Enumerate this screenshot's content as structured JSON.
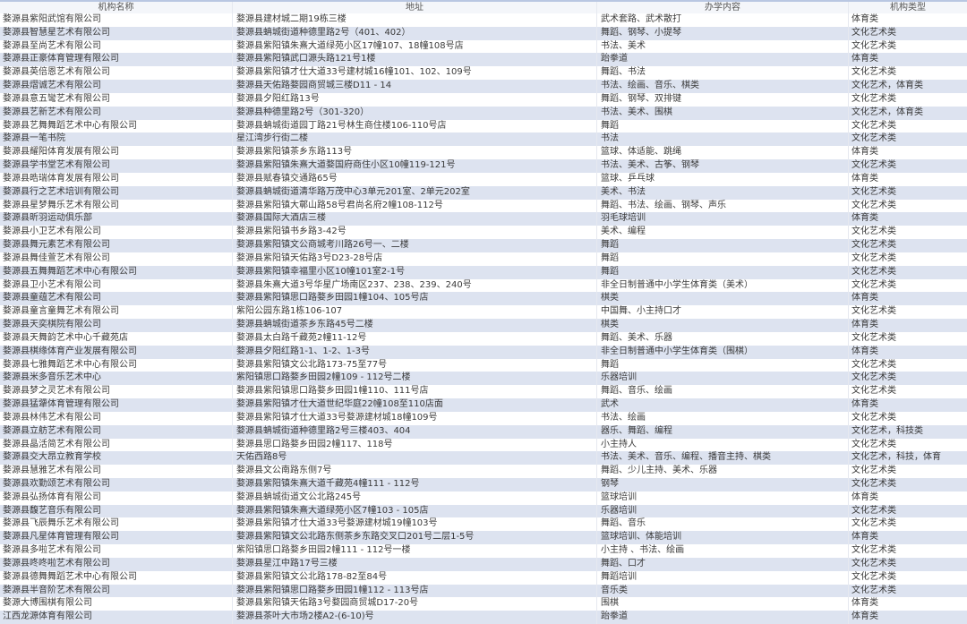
{
  "headers": [
    "机构名称",
    "地址",
    "办学内容",
    "机构类型"
  ],
  "rows": [
    [
      "婺源县紫阳武馆有限公司",
      "婺源县建材城二期19栋三楼",
      "武术套路、武术散打",
      "体育类"
    ],
    [
      "婺源县智慧星艺术有限公司",
      "婺源县蚺城街道种德里路2号（401、402）",
      "舞蹈、钢琴、小提琴",
      "文化艺术类"
    ],
    [
      "婺源县至尚艺术有限公司",
      "婺源县紫阳镇朱熹大道绿苑小区17幢107、18幢108号店",
      "书法、美术",
      "文化艺术类"
    ],
    [
      "婺源县正豪体育管理有限公司",
      "婺源县紫阳镇武口源头路121号1楼",
      "跆拳道",
      "体育类"
    ],
    [
      "婺源县英倍恩艺术有限公司",
      "婺源县紫阳镇才仕大道33号建材城16幢101、102、109号",
      "舞蹈、书法",
      "文化艺术类"
    ],
    [
      "婺源县熠诚艺术有限公司",
      "婺源县天佑路婺园商贸城三楼D11 - 14",
      "书法、绘画、音乐、棋类",
      "文化艺术，体育类"
    ],
    [
      "婺源县意五彎艺术有限公司",
      "婺源县夕阳红路13号",
      "舞蹈、钢琴、双排键",
      "文化艺术类"
    ],
    [
      "婺源县艺新艺术有限公司",
      "婺源县种德里路2号（301-320）",
      "书法、美术、围棋",
      "文化艺术，体育类"
    ],
    [
      "婺源县艺舞舞蹈艺术中心有限公司",
      "婺源县蚺城街道园丁路21号林生商住楼106-110号店",
      "舞蹈",
      "文化艺术类"
    ],
    [
      "婺源县一笔书院",
      "星江湾步行街二楼",
      "书法",
      "文化艺术类"
    ],
    [
      "婺源县耀阳体育发展有限公司",
      "婺源县紫阳镇茶乡东路113号",
      "篮球、体适能、跳绳",
      "体育类"
    ],
    [
      "婺源县学书堂艺术有限公司",
      "婺源县紫阳镇朱熹大道婺国府商住小区10幢119-121号",
      "书法、美术、古筝、钢琴",
      "文化艺术类"
    ],
    [
      "婺源县晧瑞体育发展有限公司",
      "婺源县赋春镇交通路65号",
      "篮球、乒乓球",
      "体育类"
    ],
    [
      "婺源县行之艺术培训有限公司",
      "婺源县蚺城街道清华路万茂中心3单元201室、2单元202室",
      "美术、书法",
      "文化艺术类"
    ],
    [
      "婺源县星梦舞乐艺术有限公司",
      "婺源县紫阳镇大鄣山路58号君尚名府2幢108-112号",
      "舞蹈、书法、绘画、钢琴、声乐",
      "文化艺术类"
    ],
    [
      "婺源县昕羽运动俱乐部",
      "婺源县国际大酒店三楼",
      "羽毛球培训",
      "体育类"
    ],
    [
      "婺源县小卫艺术有限公司",
      "婺源县紫阳镇书乡路3-42号",
      "美术、编程",
      "文化艺术类"
    ],
    [
      "婺源县舞元素艺术有限公司",
      "婺源县紫阳镇文公商城考川路26号一、二楼",
      "舞蹈",
      "文化艺术类"
    ],
    [
      "婺源县舞佳萱艺术有限公司",
      "婺源县紫阳镇天佑路3号D23-28号店",
      "舞蹈",
      "文化艺术类"
    ],
    [
      "婺源县五舞舞蹈艺术中心有限公司",
      "婺源县紫阳镇幸福里小区10幢101室2-1号",
      "舞蹈",
      "文化艺术类"
    ],
    [
      "婺源县卫小艺术有限公司",
      "婺源县朱熹大道3号华星广场南区237、238、239、240号",
      "非全日制普通中小学生体育类（美术）",
      "文化艺术类"
    ],
    [
      "婺源县童蕴艺术有限公司",
      "婺源县紫阳镇思口路婺乡田园1幢104、105号店",
      "棋类",
      "体育类"
    ],
    [
      "婺源县童言童舞艺术有限公司",
      "紫阳公园东路1栋106-107",
      "中国舞、小主持口才",
      "文化艺术类"
    ],
    [
      "婺源县天奕棋院有限公司",
      "婺源县蚺城街道茶乡东路45号二楼",
      "棋类",
      "体育类"
    ],
    [
      "婺源县天舞韵艺术中心千藏苑店",
      "婺源县太白路千藏苑2幢11-12号",
      "舞蹈、美术、乐器",
      "文化艺术类"
    ],
    [
      "婺源县棋缘体育产业发展有限公司",
      "婺源县夕阳红路1-1、1-2、1-3号",
      "非全日制普通中小学生体育类（围棋）",
      "体育类"
    ],
    [
      "婺源县七雅舞蹈艺术中心有限公司",
      "婺源县紫阳镇文公北路173-75至77号",
      "舞蹈",
      "文化艺术类"
    ],
    [
      "婺源县米多音乐艺术中心",
      "紫阳镇思口路婺乡田园2幢109 - 112号二楼",
      "乐器培训",
      "文化艺术类"
    ],
    [
      "婺源县梦之灵艺术有限公司",
      "婺源县紫阳镇思口路婺乡田园1幢110、111号店",
      "舞蹈、音乐、绘画",
      "文化艺术类"
    ],
    [
      "婺源县猛犟体育管理有限公司",
      "婺源县紫阳镇才仕大道世纪华庭22幢108至110店面",
      "武术",
      "体育类"
    ],
    [
      "婺源县林伟艺术有限公司",
      "婺源县紫阳镇才仕大道33号婺源建材城18幢109号",
      "书法、绘画",
      "文化艺术类"
    ],
    [
      "婺源县立舫艺术有限公司",
      "婺源县蚺城街道种德里路2号三楼403、404",
      "器乐、舞蹈、编程",
      "文化艺术，科技类"
    ],
    [
      "婺源县晶活简艺术有限公司",
      "婺源县思口路婺乡田园2幢117、118号",
      "小主持人",
      "文化艺术类"
    ],
    [
      "婺源县交大昂立教育学校",
      "天佑西路8号",
      "书法、美术、音乐、编程、播音主持、棋类",
      "文化艺术，科技，体育"
    ],
    [
      "婺源县慧雅艺术有限公司",
      "婺源县文公南路东侧7号",
      "舞蹈、少儿主持、美术、乐器",
      "文化艺术类"
    ],
    [
      "婺源县欢勤颂艺术有限公司",
      "婺源县紫阳镇朱熹大道千藏苑4幢111 - 112号",
      "钢琴",
      "文化艺术类"
    ],
    [
      "婺源县弘扬体育有限公司",
      "婺源县蚺城街道文公北路245号",
      "篮球培训",
      "体育类"
    ],
    [
      "婺源县馥艺音乐有限公司",
      "婺源县紫阳镇朱熹大道绿苑小区7幢103 - 105店",
      "乐器培训",
      "文化艺术类"
    ],
    [
      "婺源县飞辰舞乐艺术有限公司",
      "婺源县紫阳镇才仕大道33号婺源建材城19幢103号",
      "舞蹈、音乐",
      "文化艺术类"
    ],
    [
      "婺源县凡星体育管理有限公司",
      "婺源县紫阳镇文公北路东侧茶乡东路交叉口201号二层1-5号",
      "篮球培训、体能培训",
      "体育类"
    ],
    [
      "婺源县多啦艺术有限公司",
      "紫阳镇思口路婺乡田园2幢111 - 112号一楼",
      "小主持 、书法、绘画",
      "文化艺术类"
    ],
    [
      "婺源县咚咚啦艺术有限公司",
      "婺源县星江中路17号三楼",
      "舞蹈、口才",
      "文化艺术类"
    ],
    [
      "婺源县德舞舞蹈艺术中心有限公司",
      "婺源县紫阳镇文公北路178-82至84号",
      "舞蹈培训",
      "文化艺术类"
    ],
    [
      "婺源县半音阶艺术有限公司",
      "婺源县紫阳镇思口路婺乡田园1幢112 - 113号店",
      "音乐类",
      "文化艺术类"
    ],
    [
      "婺源大博围棋有限公司",
      "婺源县紫阳镇天佑路3号婺园商贸城D17-20号",
      "围棋",
      "体育类"
    ],
    [
      "江西龙源体育有限公司",
      "婺源县茶叶大市场2楼A2-(6-10)号",
      "跆拳道",
      "体育类"
    ]
  ]
}
